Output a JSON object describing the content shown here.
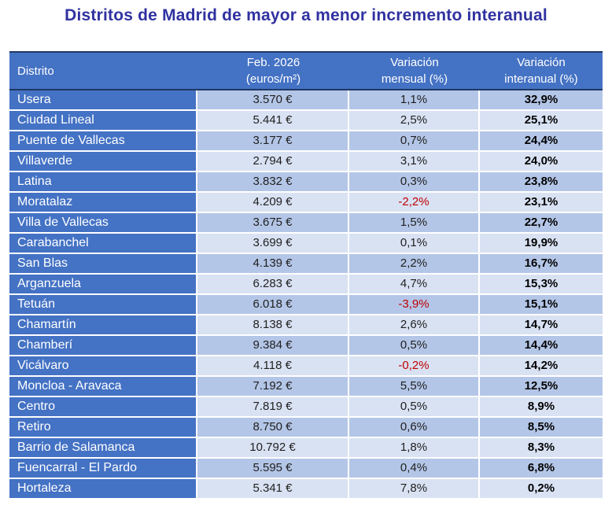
{
  "title": "Distritos de Madrid de mayor a menor incremento interanual",
  "colors": {
    "header_bg": "#4472C4",
    "band_dark": "#B4C6E7",
    "band_light": "#D9E2F3",
    "header_rule_navy": "#1F3864",
    "negative_value": "#C00000",
    "title": "#3032A0"
  },
  "chart_data": {
    "type": "table",
    "title": "Distritos de Madrid de mayor a menor incremento interanual",
    "columns": [
      {
        "key": "district",
        "lines": [
          "Distrito"
        ]
      },
      {
        "key": "price",
        "lines": [
          "Feb. 2026",
          "(euros/m²)"
        ]
      },
      {
        "key": "monthly",
        "lines": [
          "Variación",
          "mensual (%)"
        ]
      },
      {
        "key": "annual",
        "lines": [
          "Variación",
          "interanual (%)"
        ]
      }
    ],
    "rows": [
      {
        "district": "Usera",
        "price": "3.570 €",
        "monthly": "1,1%",
        "annual": "32,9%"
      },
      {
        "district": "Ciudad Lineal",
        "price": "5.441 €",
        "monthly": "2,5%",
        "annual": "25,1%"
      },
      {
        "district": "Puente de Vallecas",
        "price": "3.177 €",
        "monthly": "0,7%",
        "annual": "24,4%"
      },
      {
        "district": "Villaverde",
        "price": "2.794 €",
        "monthly": "3,1%",
        "annual": "24,0%"
      },
      {
        "district": "Latina",
        "price": "3.832 €",
        "monthly": "0,3%",
        "annual": "23,8%"
      },
      {
        "district": "Moratalaz",
        "price": "4.209 €",
        "monthly": "-2,2%",
        "annual": "23,1%"
      },
      {
        "district": "Villa de Vallecas",
        "price": "3.675 €",
        "monthly": "1,5%",
        "annual": "22,7%"
      },
      {
        "district": "Carabanchel",
        "price": "3.699 €",
        "monthly": "0,1%",
        "annual": "19,9%"
      },
      {
        "district": "San Blas",
        "price": "4.139 €",
        "monthly": "2,2%",
        "annual": "16,7%"
      },
      {
        "district": "Arganzuela",
        "price": "6.283 €",
        "monthly": "4,7%",
        "annual": "15,3%"
      },
      {
        "district": "Tetuán",
        "price": "6.018 €",
        "monthly": "-3,9%",
        "annual": "15,1%"
      },
      {
        "district": "Chamartín",
        "price": "8.138 €",
        "monthly": "2,6%",
        "annual": "14,7%"
      },
      {
        "district": "Chamberí",
        "price": "9.384 €",
        "monthly": "0,5%",
        "annual": "14,4%"
      },
      {
        "district": "Vicálvaro",
        "price": "4.118 €",
        "monthly": "-0,2%",
        "annual": "14,2%"
      },
      {
        "district": "Moncloa - Aravaca",
        "price": "7.192 €",
        "monthly": "5,5%",
        "annual": "12,5%"
      },
      {
        "district": "Centro",
        "price": "7.819 €",
        "monthly": "0,5%",
        "annual": "8,9%"
      },
      {
        "district": "Retiro",
        "price": "8.750 €",
        "monthly": "0,6%",
        "annual": "8,5%"
      },
      {
        "district": "Barrio de Salamanca",
        "price": "10.792 €",
        "monthly": "1,8%",
        "annual": "8,3%"
      },
      {
        "district": "Fuencarral - El Pardo",
        "price": "5.595 €",
        "monthly": "0,4%",
        "annual": "6,8%"
      },
      {
        "district": "Hortaleza",
        "price": "5.341 €",
        "monthly": "7,8%",
        "annual": "0,2%"
      }
    ]
  }
}
